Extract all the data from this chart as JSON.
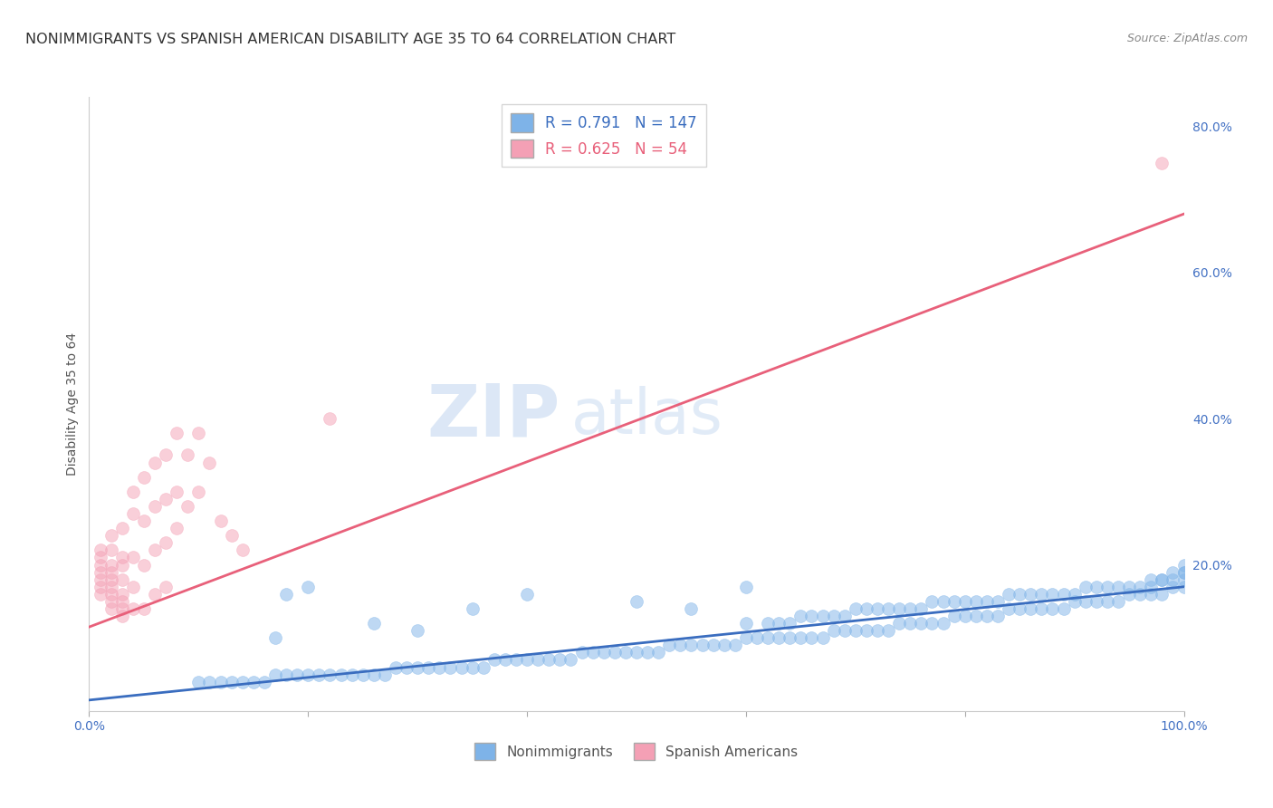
{
  "title": "NONIMMIGRANTS VS SPANISH AMERICAN DISABILITY AGE 35 TO 64 CORRELATION CHART",
  "source": "Source: ZipAtlas.com",
  "ylabel": "Disability Age 35 to 64",
  "xlim": [
    0,
    1.0
  ],
  "ylim": [
    0,
    0.84
  ],
  "xticks": [
    0.0,
    0.2,
    0.4,
    0.6,
    0.8,
    1.0
  ],
  "xticklabels": [
    "0.0%",
    "",
    "",
    "",
    "",
    "100.0%"
  ],
  "yticks_right": [
    0.0,
    0.2,
    0.4,
    0.6,
    0.8
  ],
  "yticklabels_right": [
    "",
    "20.0%",
    "40.0%",
    "60.0%",
    "80.0%"
  ],
  "blue_R": 0.791,
  "blue_N": 147,
  "pink_R": 0.625,
  "pink_N": 54,
  "blue_color": "#7EB3E8",
  "pink_color": "#F4A0B5",
  "blue_line_color": "#3A6DBF",
  "pink_line_color": "#E8607A",
  "legend_label_blue": "Nonimmigrants",
  "legend_label_pink": "Spanish Americans",
  "blue_trendline_x": [
    0.0,
    1.0
  ],
  "blue_trendline_y": [
    0.015,
    0.17
  ],
  "pink_trendline_x": [
    0.0,
    1.0
  ],
  "pink_trendline_y": [
    0.115,
    0.68
  ],
  "grid_color": "#DDDDDD",
  "background_color": "#FFFFFF",
  "title_color": "#333333",
  "axis_color": "#4472C4",
  "title_fontsize": 11.5,
  "label_fontsize": 10,
  "tick_fontsize": 10,
  "source_fontsize": 9,
  "blue_scatter_x": [
    0.6,
    0.62,
    0.63,
    0.64,
    0.65,
    0.66,
    0.67,
    0.68,
    0.69,
    0.7,
    0.71,
    0.72,
    0.73,
    0.74,
    0.75,
    0.76,
    0.77,
    0.78,
    0.79,
    0.8,
    0.81,
    0.82,
    0.83,
    0.84,
    0.85,
    0.86,
    0.87,
    0.88,
    0.89,
    0.9,
    0.91,
    0.92,
    0.93,
    0.94,
    0.95,
    0.96,
    0.97,
    0.97,
    0.98,
    0.98,
    0.99,
    0.99,
    1.0,
    1.0,
    1.0,
    1.0,
    1.0,
    0.99,
    0.98,
    0.97,
    0.96,
    0.95,
    0.94,
    0.93,
    0.92,
    0.91,
    0.9,
    0.89,
    0.88,
    0.87,
    0.86,
    0.85,
    0.84,
    0.83,
    0.82,
    0.81,
    0.8,
    0.79,
    0.78,
    0.77,
    0.76,
    0.75,
    0.74,
    0.73,
    0.72,
    0.71,
    0.7,
    0.69,
    0.68,
    0.67,
    0.66,
    0.65,
    0.64,
    0.63,
    0.62,
    0.61,
    0.6,
    0.59,
    0.58,
    0.57,
    0.56,
    0.55,
    0.54,
    0.53,
    0.52,
    0.51,
    0.5,
    0.49,
    0.48,
    0.47,
    0.46,
    0.45,
    0.44,
    0.43,
    0.42,
    0.41,
    0.4,
    0.39,
    0.38,
    0.37,
    0.36,
    0.35,
    0.34,
    0.33,
    0.32,
    0.31,
    0.3,
    0.29,
    0.28,
    0.27,
    0.26,
    0.25,
    0.24,
    0.23,
    0.22,
    0.21,
    0.2,
    0.19,
    0.18,
    0.17,
    0.16,
    0.15,
    0.14,
    0.13,
    0.12,
    0.11,
    0.1,
    0.26,
    0.3,
    0.35,
    0.4,
    0.5,
    0.55,
    0.6,
    0.17,
    0.18,
    0.2
  ],
  "blue_scatter_y": [
    0.12,
    0.12,
    0.12,
    0.12,
    0.13,
    0.13,
    0.13,
    0.13,
    0.13,
    0.14,
    0.14,
    0.14,
    0.14,
    0.14,
    0.14,
    0.14,
    0.15,
    0.15,
    0.15,
    0.15,
    0.15,
    0.15,
    0.15,
    0.16,
    0.16,
    0.16,
    0.16,
    0.16,
    0.16,
    0.16,
    0.17,
    0.17,
    0.17,
    0.17,
    0.17,
    0.17,
    0.18,
    0.17,
    0.18,
    0.18,
    0.18,
    0.19,
    0.19,
    0.19,
    0.2,
    0.18,
    0.17,
    0.17,
    0.16,
    0.16,
    0.16,
    0.16,
    0.15,
    0.15,
    0.15,
    0.15,
    0.15,
    0.14,
    0.14,
    0.14,
    0.14,
    0.14,
    0.14,
    0.13,
    0.13,
    0.13,
    0.13,
    0.13,
    0.12,
    0.12,
    0.12,
    0.12,
    0.12,
    0.11,
    0.11,
    0.11,
    0.11,
    0.11,
    0.11,
    0.1,
    0.1,
    0.1,
    0.1,
    0.1,
    0.1,
    0.1,
    0.1,
    0.09,
    0.09,
    0.09,
    0.09,
    0.09,
    0.09,
    0.09,
    0.08,
    0.08,
    0.08,
    0.08,
    0.08,
    0.08,
    0.08,
    0.08,
    0.07,
    0.07,
    0.07,
    0.07,
    0.07,
    0.07,
    0.07,
    0.07,
    0.06,
    0.06,
    0.06,
    0.06,
    0.06,
    0.06,
    0.06,
    0.06,
    0.06,
    0.05,
    0.05,
    0.05,
    0.05,
    0.05,
    0.05,
    0.05,
    0.05,
    0.05,
    0.05,
    0.05,
    0.04,
    0.04,
    0.04,
    0.04,
    0.04,
    0.04,
    0.04,
    0.12,
    0.11,
    0.14,
    0.16,
    0.15,
    0.14,
    0.17,
    0.1,
    0.16,
    0.17
  ],
  "pink_scatter_x": [
    0.01,
    0.01,
    0.01,
    0.01,
    0.01,
    0.01,
    0.01,
    0.02,
    0.02,
    0.02,
    0.02,
    0.02,
    0.02,
    0.02,
    0.02,
    0.02,
    0.03,
    0.03,
    0.03,
    0.03,
    0.03,
    0.03,
    0.03,
    0.03,
    0.04,
    0.04,
    0.04,
    0.04,
    0.04,
    0.05,
    0.05,
    0.05,
    0.05,
    0.06,
    0.06,
    0.06,
    0.06,
    0.07,
    0.07,
    0.07,
    0.07,
    0.08,
    0.08,
    0.08,
    0.09,
    0.09,
    0.1,
    0.1,
    0.11,
    0.12,
    0.13,
    0.14,
    0.22,
    0.98
  ],
  "pink_scatter_y": [
    0.16,
    0.17,
    0.18,
    0.19,
    0.2,
    0.21,
    0.22,
    0.14,
    0.15,
    0.16,
    0.17,
    0.18,
    0.19,
    0.2,
    0.22,
    0.24,
    0.13,
    0.14,
    0.15,
    0.16,
    0.18,
    0.2,
    0.21,
    0.25,
    0.14,
    0.17,
    0.21,
    0.27,
    0.3,
    0.14,
    0.2,
    0.26,
    0.32,
    0.16,
    0.22,
    0.28,
    0.34,
    0.17,
    0.23,
    0.29,
    0.35,
    0.25,
    0.3,
    0.38,
    0.28,
    0.35,
    0.3,
    0.38,
    0.34,
    0.26,
    0.24,
    0.22,
    0.4,
    0.75
  ]
}
